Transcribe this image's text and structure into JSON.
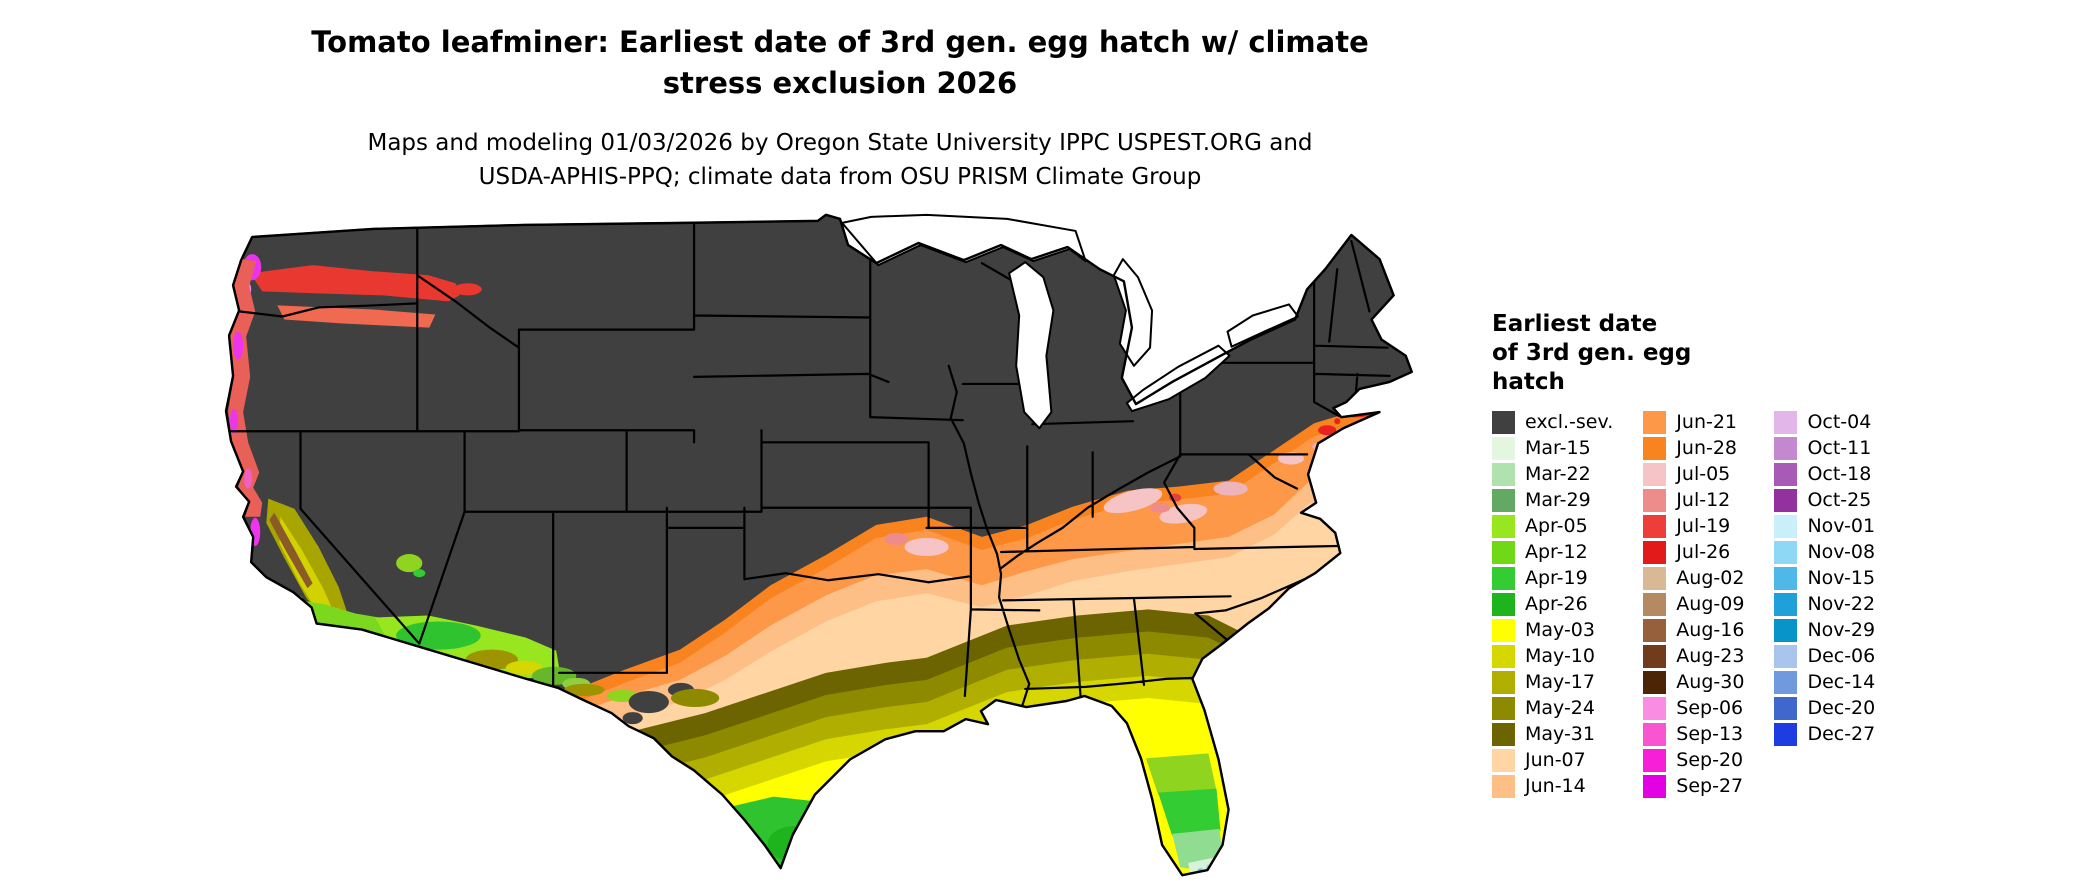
{
  "title": {
    "lines": [
      "Tomato leafminer: Earliest date of 3rd gen. egg hatch w/ climate",
      "stress exclusion 2026"
    ]
  },
  "subtitle": {
    "lines": [
      "Maps and modeling 01/03/2026 by Oregon State University IPPC USPEST.ORG and",
      "USDA-APHIS-PPQ; climate data from OSU PRISM Climate Group"
    ]
  },
  "map": {
    "description": "Choropleth map of the contiguous United States colored by earliest date of 3rd generation egg hatch; dark gray indicates excluded / severe climate stress areas",
    "background": "#ffffff",
    "base_fill": "#404040"
  },
  "legend": {
    "title_lines": [
      "Earliest date",
      "of 3rd gen. egg",
      "hatch"
    ],
    "columns": [
      {
        "entries": [
          {
            "label": "excl.-sev.",
            "color": "#404040"
          },
          {
            "label": "Mar-15",
            "color": "#e4f6e0"
          },
          {
            "label": "Mar-22",
            "color": "#b0e2ae"
          },
          {
            "label": "Mar-29",
            "color": "#63a963"
          },
          {
            "label": "Apr-05",
            "color": "#97e61f"
          },
          {
            "label": "Apr-12",
            "color": "#70d816"
          },
          {
            "label": "Apr-19",
            "color": "#33cc33"
          },
          {
            "label": "Apr-26",
            "color": "#1eb41e"
          },
          {
            "label": "May-03",
            "color": "#ffff00"
          },
          {
            "label": "May-10",
            "color": "#d6d600"
          },
          {
            "label": "May-17",
            "color": "#b0ae00"
          },
          {
            "label": "May-24",
            "color": "#8e8a00"
          },
          {
            "label": "May-31",
            "color": "#6b6400"
          },
          {
            "label": "Jun-07",
            "color": "#ffd5a4"
          },
          {
            "label": "Jun-14",
            "color": "#febf87"
          }
        ]
      },
      {
        "entries": [
          {
            "label": "Jun-21",
            "color": "#fd9848"
          },
          {
            "label": "Jun-28",
            "color": "#f8831f"
          },
          {
            "label": "Jul-05",
            "color": "#f6c4c4"
          },
          {
            "label": "Jul-12",
            "color": "#ee8c8c"
          },
          {
            "label": "Jul-19",
            "color": "#ee3e3a"
          },
          {
            "label": "Jul-26",
            "color": "#e31a1a"
          },
          {
            "label": "Aug-02",
            "color": "#d9b896"
          },
          {
            "label": "Aug-09",
            "color": "#b58a62"
          },
          {
            "label": "Aug-16",
            "color": "#96603c"
          },
          {
            "label": "Aug-23",
            "color": "#713c1c"
          },
          {
            "label": "Aug-30",
            "color": "#4c2406"
          },
          {
            "label": "Sep-06",
            "color": "#fb8ce4"
          },
          {
            "label": "Sep-13",
            "color": "#f856d0"
          },
          {
            "label": "Sep-20",
            "color": "#f71fd8"
          },
          {
            "label": "Sep-27",
            "color": "#e300e3"
          }
        ]
      },
      {
        "entries": [
          {
            "label": "Oct-04",
            "color": "#e2b6e8"
          },
          {
            "label": "Oct-11",
            "color": "#c388cf"
          },
          {
            "label": "Oct-18",
            "color": "#a75ab6"
          },
          {
            "label": "Oct-25",
            "color": "#93329f"
          },
          {
            "label": "Nov-01",
            "color": "#c9effb"
          },
          {
            "label": "Nov-08",
            "color": "#8fd8f5"
          },
          {
            "label": "Nov-15",
            "color": "#4fb8e8"
          },
          {
            "label": "Nov-22",
            "color": "#1fa0d8"
          },
          {
            "label": "Nov-29",
            "color": "#0894c8"
          },
          {
            "label": "Dec-06",
            "color": "#a9c5ee"
          },
          {
            "label": "Dec-14",
            "color": "#7199dd"
          },
          {
            "label": "Dec-20",
            "color": "#3f67cc"
          },
          {
            "label": "Dec-27",
            "color": "#1d3de3"
          }
        ]
      }
    ]
  }
}
